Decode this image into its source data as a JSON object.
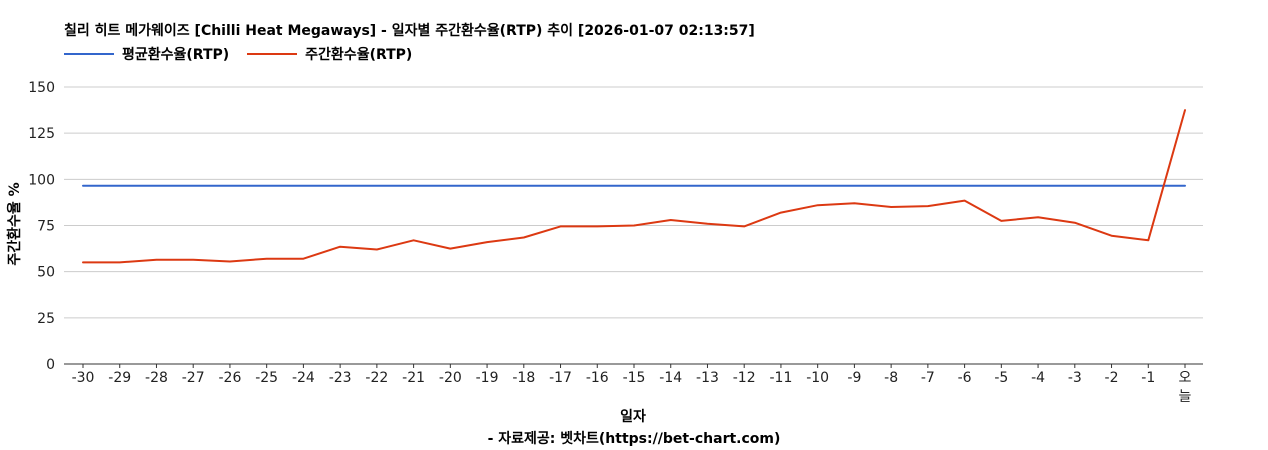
{
  "chart_data": {
    "type": "line",
    "title": "칠리 히트 메가웨이즈 [Chilli Heat Megaways] - 일자별 주간환수율(RTP) 추이 [2026-01-07 02:13:57]",
    "xlabel": "일자",
    "ylabel": "주간환수율 %",
    "source": "- 자료제공: 벳차트(https://bet-chart.com)",
    "categories": [
      "-30",
      "-29",
      "-28",
      "-27",
      "-26",
      "-25",
      "-24",
      "-23",
      "-22",
      "-21",
      "-20",
      "-19",
      "-18",
      "-17",
      "-16",
      "-15",
      "-14",
      "-13",
      "-12",
      "-11",
      "-10",
      "-9",
      "-8",
      "-7",
      "-6",
      "-5",
      "-4",
      "-3",
      "-2",
      "-1",
      "오늘"
    ],
    "ylim": [
      0,
      150
    ],
    "yticks": [
      0,
      25,
      50,
      75,
      100,
      125,
      150
    ],
    "grid": true,
    "legend": "top-left",
    "series": [
      {
        "name": "평균환수율(RTP)",
        "color": "#3366cc",
        "values": [
          96.5,
          96.5,
          96.5,
          96.5,
          96.5,
          96.5,
          96.5,
          96.5,
          96.5,
          96.5,
          96.5,
          96.5,
          96.5,
          96.5,
          96.5,
          96.5,
          96.5,
          96.5,
          96.5,
          96.5,
          96.5,
          96.5,
          96.5,
          96.5,
          96.5,
          96.5,
          96.5,
          96.5,
          96.5,
          96.5,
          96.5
        ]
      },
      {
        "name": "주간환수율(RTP)",
        "color": "#dc3912",
        "values": [
          55,
          55,
          56.5,
          56.5,
          55.5,
          57,
          57,
          63.5,
          62,
          67,
          62.5,
          66,
          68.5,
          74.5,
          74.5,
          75,
          78,
          76,
          74.5,
          82,
          86,
          87,
          85,
          85.5,
          88.5,
          77.5,
          79.5,
          76.5,
          69.5,
          67,
          137.5
        ]
      }
    ]
  }
}
